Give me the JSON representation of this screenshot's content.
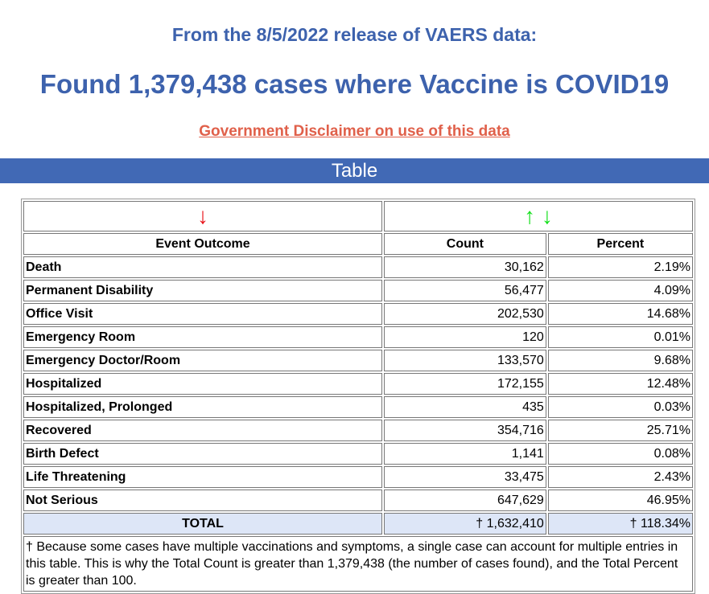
{
  "header": {
    "release": "From the 8/5/2022 release of VAERS data:",
    "found": "Found 1,379,438 cases where Vaccine is COVID19",
    "disclaimer": "Government Disclaimer on use of this data"
  },
  "section_title": "Table",
  "colors": {
    "title": "#3d62ad",
    "bar": "#4169b5",
    "link": "#e0604a",
    "down_red": "#e8141a",
    "green": "#12e01a"
  },
  "arrows": {
    "left": "↓",
    "up": "↑",
    "down": "↓"
  },
  "table": {
    "headers": [
      "Event Outcome",
      "Count",
      "Percent"
    ],
    "rows": [
      {
        "label": "Death",
        "count": "30,162",
        "percent": "2.19%"
      },
      {
        "label": "Permanent Disability",
        "count": "56,477",
        "percent": "4.09%"
      },
      {
        "label": "Office Visit",
        "count": "202,530",
        "percent": "14.68%"
      },
      {
        "label": "Emergency Room",
        "count": "120",
        "percent": "0.01%"
      },
      {
        "label": "Emergency Doctor/Room",
        "count": "133,570",
        "percent": "9.68%"
      },
      {
        "label": "Hospitalized",
        "count": "172,155",
        "percent": "12.48%"
      },
      {
        "label": "Hospitalized, Prolonged",
        "count": "435",
        "percent": "0.03%"
      },
      {
        "label": "Recovered",
        "count": "354,716",
        "percent": "25.71%"
      },
      {
        "label": "Birth Defect",
        "count": "1,141",
        "percent": "0.08%"
      },
      {
        "label": "Life Threatening",
        "count": "33,475",
        "percent": "2.43%"
      },
      {
        "label": "Not Serious",
        "count": "647,629",
        "percent": "46.95%"
      }
    ],
    "total": {
      "label": "TOTAL",
      "count": "† 1,632,410",
      "percent": "† 118.34%"
    },
    "footnote": "† Because some cases have multiple vaccinations and symptoms, a single case can account for multiple entries in this table. This is why the Total Count is greater than 1,379,438 (the number of cases found), and the Total Percent is greater than 100."
  }
}
